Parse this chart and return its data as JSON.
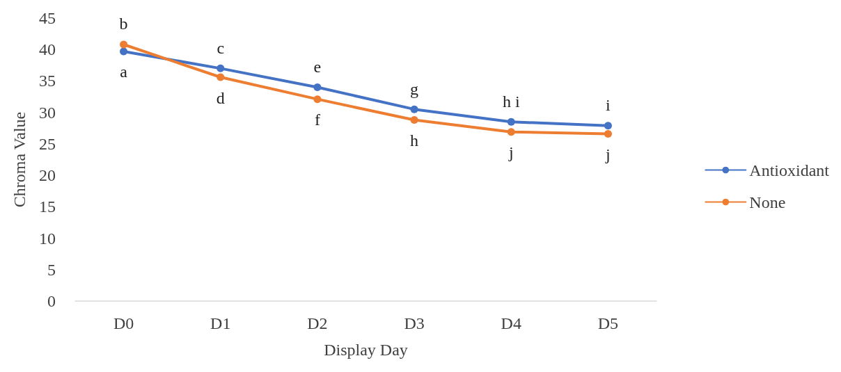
{
  "chart_data": {
    "type": "line",
    "xlabel": "Display Day",
    "ylabel": "Chroma Value",
    "categories": [
      "D0",
      "D1",
      "D2",
      "D3",
      "D4",
      "D5"
    ],
    "series": [
      {
        "name": "Antioxidant",
        "color": "#4472c4",
        "values": [
          39.7,
          37.0,
          34.0,
          30.5,
          28.5,
          27.9
        ],
        "value_labels": [
          "a",
          "c",
          "e",
          "g",
          "h i",
          "i"
        ]
      },
      {
        "name": "None",
        "color": "#ed7d31",
        "values": [
          40.8,
          35.6,
          32.1,
          28.8,
          26.9,
          26.6
        ],
        "value_labels": [
          "b",
          "d",
          "f",
          "h",
          "j",
          "j"
        ]
      }
    ],
    "ylim": [
      0,
      45
    ],
    "yticks": [
      0,
      5,
      10,
      15,
      20,
      25,
      30,
      35,
      40,
      45
    ],
    "grid": false,
    "legend": "right",
    "marker": "circle",
    "line_style": "solid"
  }
}
